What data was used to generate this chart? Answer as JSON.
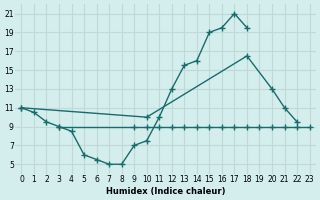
{
  "xlabel": "Humidex (Indice chaleur)",
  "bg_color": "#d4eeee",
  "grid_color": "#c0d8d8",
  "line_color": "#1a6b6b",
  "xlim": [
    -0.5,
    23.5
  ],
  "ylim": [
    4,
    22
  ],
  "xticks": [
    0,
    1,
    2,
    3,
    4,
    5,
    6,
    7,
    8,
    9,
    10,
    11,
    12,
    13,
    14,
    15,
    16,
    17,
    18,
    19,
    20,
    21,
    22,
    23
  ],
  "yticks": [
    5,
    7,
    9,
    11,
    13,
    15,
    17,
    19,
    21
  ],
  "line1_x": [
    0,
    1,
    2,
    3,
    4,
    5,
    6,
    7,
    8,
    9,
    10,
    11,
    12,
    13,
    14,
    15,
    16,
    17,
    18
  ],
  "line1_y": [
    11,
    10.5,
    9.5,
    9.0,
    8.5,
    6.0,
    5.5,
    5.0,
    5.0,
    7.0,
    7.5,
    10.0,
    13.0,
    15.5,
    16.0,
    19.0,
    19.5,
    21.0,
    19.5
  ],
  "line2_x": [
    0,
    10,
    18,
    20,
    21,
    22
  ],
  "line2_y": [
    11,
    10.0,
    16.5,
    13.0,
    11.0,
    9.5
  ],
  "line3_x": [
    3,
    9,
    10,
    11,
    12,
    13,
    14,
    15,
    16,
    17,
    18,
    19,
    20,
    21,
    22,
    23
  ],
  "line3_y": [
    9,
    9,
    9,
    9,
    9,
    9,
    9,
    9,
    9,
    9,
    9,
    9,
    9,
    9,
    9,
    9
  ]
}
